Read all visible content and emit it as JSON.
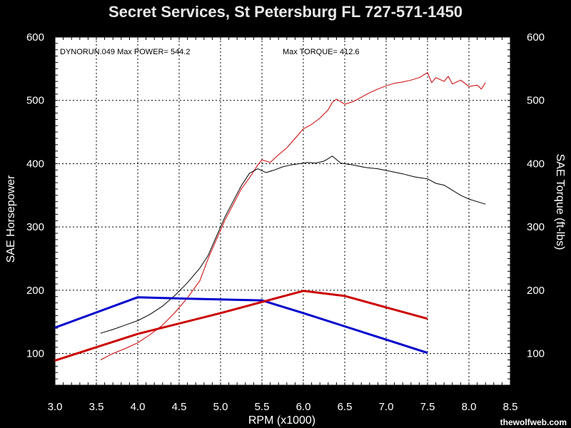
{
  "chart_data": {
    "type": "line",
    "title": "Secret Services, St Petersburg FL 727-571-1450",
    "xlabel": "RPM (x1000)",
    "ylabel": "SAE Horsepower",
    "y2label": "SAE Torque (ft-lbs)",
    "xlim": [
      3.0,
      8.5
    ],
    "ylim": [
      50,
      600
    ],
    "y2lim": [
      50,
      600
    ],
    "x_ticks": [
      "3.0",
      "3.5",
      "4.0",
      "4.5",
      "5.0",
      "5.5",
      "6.0",
      "6.5",
      "7.0",
      "7.5",
      "8.0",
      "8.5"
    ],
    "y_ticks": [
      "100",
      "200",
      "300",
      "400",
      "500",
      "600"
    ],
    "y2_ticks": [
      "100",
      "200",
      "300",
      "400",
      "500",
      "600"
    ],
    "grid": true,
    "background_color": "#ffffff",
    "annotations": [
      {
        "text": "DYNORUN.049  Max POWER= 544.2"
      },
      {
        "text": "Max TORQUE= 412.6"
      }
    ],
    "series": [
      {
        "color": "#cc0000",
        "points": [
          [
            3.55,
            90
          ],
          [
            3.7,
            100
          ],
          [
            3.85,
            108
          ],
          [
            4.0,
            117
          ],
          [
            4.15,
            130
          ],
          [
            4.3,
            145
          ],
          [
            4.45,
            165
          ],
          [
            4.6,
            188
          ],
          [
            4.75,
            215
          ],
          [
            4.85,
            250
          ],
          [
            4.95,
            280
          ],
          [
            5.05,
            310
          ],
          [
            5.15,
            335
          ],
          [
            5.25,
            360
          ],
          [
            5.35,
            378
          ],
          [
            5.45,
            398
          ],
          [
            5.5,
            406
          ],
          [
            5.6,
            402
          ],
          [
            5.7,
            414
          ],
          [
            5.8,
            425
          ],
          [
            5.9,
            440
          ],
          [
            6.0,
            455
          ],
          [
            6.1,
            462
          ],
          [
            6.2,
            472
          ],
          [
            6.3,
            485
          ],
          [
            6.35,
            497
          ],
          [
            6.4,
            502
          ],
          [
            6.5,
            494
          ],
          [
            6.6,
            498
          ],
          [
            6.7,
            505
          ],
          [
            6.8,
            512
          ],
          [
            6.9,
            518
          ],
          [
            7.0,
            523
          ],
          [
            7.1,
            527
          ],
          [
            7.2,
            529
          ],
          [
            7.3,
            532
          ],
          [
            7.4,
            536
          ],
          [
            7.5,
            544
          ],
          [
            7.55,
            528
          ],
          [
            7.6,
            536
          ],
          [
            7.7,
            530
          ],
          [
            7.75,
            538
          ],
          [
            7.8,
            526
          ],
          [
            7.9,
            532
          ],
          [
            8.0,
            522
          ],
          [
            8.1,
            524
          ],
          [
            8.15,
            518
          ],
          [
            8.2,
            528
          ]
        ]
      },
      {
        "color": "#000000",
        "points": [
          [
            3.55,
            132
          ],
          [
            3.7,
            138
          ],
          [
            3.85,
            145
          ],
          [
            4.0,
            152
          ],
          [
            4.15,
            162
          ],
          [
            4.3,
            175
          ],
          [
            4.45,
            192
          ],
          [
            4.6,
            212
          ],
          [
            4.75,
            235
          ],
          [
            4.85,
            255
          ],
          [
            4.95,
            285
          ],
          [
            5.05,
            315
          ],
          [
            5.15,
            340
          ],
          [
            5.25,
            365
          ],
          [
            5.35,
            385
          ],
          [
            5.45,
            392
          ],
          [
            5.55,
            386
          ],
          [
            5.65,
            390
          ],
          [
            5.75,
            395
          ],
          [
            5.85,
            398
          ],
          [
            5.95,
            400
          ],
          [
            6.05,
            402
          ],
          [
            6.15,
            401
          ],
          [
            6.25,
            404
          ],
          [
            6.35,
            412
          ],
          [
            6.45,
            401
          ],
          [
            6.6,
            398
          ],
          [
            6.75,
            394
          ],
          [
            6.9,
            392
          ],
          [
            7.05,
            388
          ],
          [
            7.2,
            384
          ],
          [
            7.35,
            379
          ],
          [
            7.5,
            376
          ],
          [
            7.6,
            369
          ],
          [
            7.7,
            366
          ],
          [
            7.8,
            358
          ],
          [
            7.9,
            350
          ],
          [
            8.0,
            344
          ],
          [
            8.1,
            340
          ],
          [
            8.2,
            336
          ]
        ]
      },
      {
        "color": "#0000cc",
        "points": [
          [
            3.0,
            141
          ],
          [
            4.0,
            189
          ],
          [
            4.5,
            187
          ],
          [
            5.5,
            184
          ],
          [
            6.0,
            164
          ],
          [
            6.5,
            143
          ],
          [
            7.0,
            122
          ],
          [
            7.5,
            101
          ]
        ]
      },
      {
        "color": "#cc0000",
        "points": [
          [
            3.0,
            89
          ],
          [
            4.0,
            131
          ],
          [
            5.0,
            164
          ],
          [
            6.0,
            199
          ],
          [
            6.5,
            191
          ],
          [
            7.0,
            173
          ],
          [
            7.5,
            155
          ]
        ]
      }
    ]
  },
  "watermark": "thewolfweb.com"
}
